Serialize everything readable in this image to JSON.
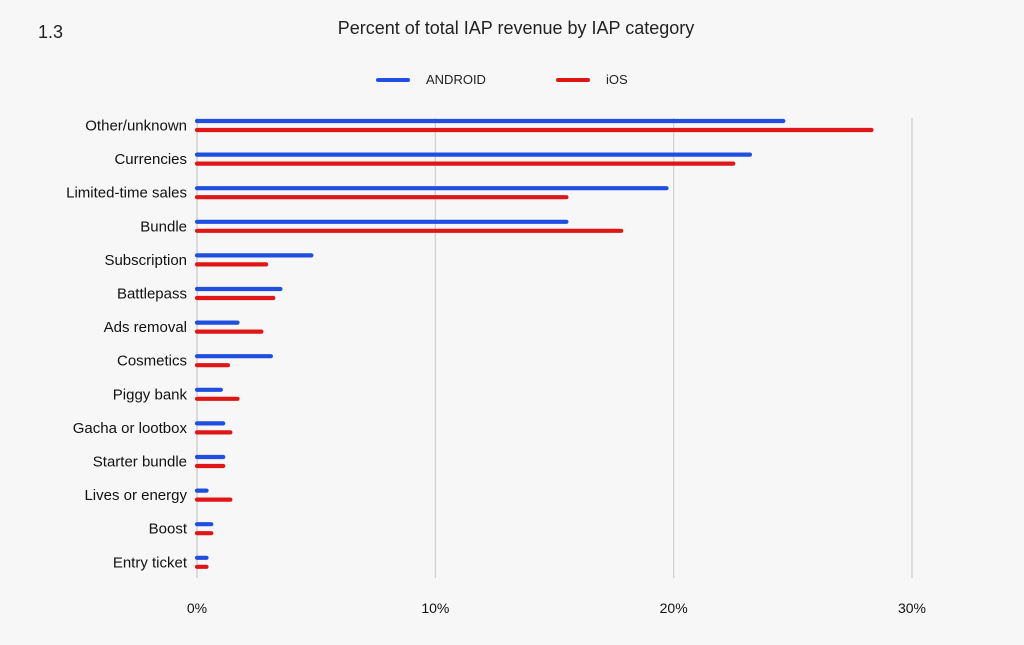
{
  "figure_number": "1.3",
  "chart_data": {
    "type": "bar",
    "orientation": "horizontal",
    "title": "Percent of total IAP revenue by IAP category",
    "categories": [
      "Other/unknown",
      "Currencies",
      "Limited-time sales",
      "Bundle",
      "Subscription",
      "Battlepass",
      "Ads removal",
      "Cosmetics",
      "Piggy bank",
      "Gacha or lootbox",
      "Starter bundle",
      "Lives or energy",
      "Boost",
      "Entry ticket"
    ],
    "series": [
      {
        "name": "ANDROID",
        "color": "#1f4fe0",
        "values": [
          24.6,
          23.2,
          19.7,
          15.5,
          4.8,
          3.5,
          1.7,
          3.1,
          1.0,
          1.1,
          1.1,
          0.4,
          0.6,
          0.4
        ]
      },
      {
        "name": "iOS",
        "color": "#e01616",
        "values": [
          28.3,
          22.5,
          15.5,
          17.8,
          2.9,
          3.2,
          2.7,
          1.3,
          1.7,
          1.4,
          1.1,
          1.4,
          0.6,
          0.4
        ]
      }
    ],
    "xlim": [
      0,
      30
    ],
    "x_ticks": [
      "0%",
      "10%",
      "20%",
      "30%"
    ],
    "x_tick_values": [
      0,
      10,
      20,
      30
    ],
    "grid": "vertical",
    "legend": "top-center"
  }
}
